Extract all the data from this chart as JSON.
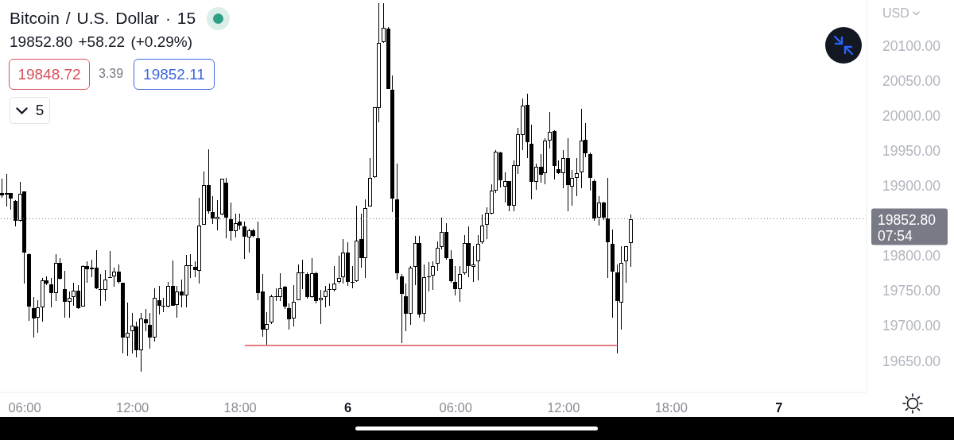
{
  "chart_data": {
    "type": "candlestick",
    "title": "Bitcoin / U.S. Dollar · 15",
    "subtitle": "19852.80 +58.22 (+0.29%)",
    "ylabel": "USD",
    "annotations": [
      "07:54",
      "19848.72",
      "3.39",
      "19852.11",
      "5"
    ],
    "categories": [
      null,
      null,
      null,
      null,
      null,
      "06:00",
      null,
      null,
      null,
      null,
      null,
      null,
      null,
      null,
      null,
      null,
      null,
      null,
      null,
      null,
      null,
      null,
      null,
      null,
      null,
      null,
      null,
      null,
      null,
      "12:00",
      null,
      null,
      null,
      null,
      null,
      null,
      null,
      null,
      null,
      null,
      null,
      null,
      null,
      null,
      null,
      null,
      null,
      null,
      null,
      null,
      null,
      null,
      null,
      "18:00",
      null,
      null,
      null,
      null,
      null,
      null,
      null,
      null,
      null,
      null,
      null,
      null,
      null,
      null,
      null,
      null,
      null,
      null,
      null,
      null,
      null,
      null,
      null,
      "6",
      null,
      null,
      null,
      null,
      null,
      null,
      null,
      null,
      null,
      null,
      null,
      null,
      null,
      null,
      null,
      null,
      null,
      null,
      null,
      null,
      null,
      null,
      null,
      "06:00",
      null,
      null,
      null,
      null,
      null,
      null,
      null,
      null,
      null,
      null,
      null,
      null,
      null,
      null,
      null,
      null,
      null,
      null,
      null,
      null,
      null,
      null,
      null,
      "12:00",
      null,
      null,
      null,
      null,
      null,
      null,
      null,
      null,
      null,
      null,
      null,
      null,
      null,
      null,
      null,
      null,
      null,
      null,
      null,
      null,
      null,
      null,
      null,
      "18:00",
      null,
      null,
      null,
      null,
      null,
      null,
      null,
      null,
      null,
      null,
      null,
      null,
      null,
      null,
      null,
      null,
      null,
      null,
      null,
      null,
      null,
      null,
      null,
      "7",
      null,
      null,
      null,
      null,
      null,
      null,
      null,
      null,
      null,
      null,
      null,
      null,
      null,
      null,
      null,
      null,
      null,
      null,
      null
    ],
    "ohlc": [
      [
        19890,
        19910,
        19883,
        19886
      ],
      [
        19890,
        19917,
        19870,
        19887
      ],
      [
        19890,
        19890,
        19866,
        19881
      ],
      [
        19879,
        19879,
        19842,
        19849
      ],
      [
        19849,
        19905,
        19849,
        19889
      ],
      [
        19892,
        19892,
        19760,
        19804
      ],
      [
        19803,
        19803,
        19707,
        19727
      ],
      [
        19726,
        19741,
        19683,
        19710
      ],
      [
        19711,
        19737,
        19690,
        19727
      ],
      [
        19726,
        19768,
        19706,
        19765
      ],
      [
        19765,
        19770,
        19758,
        19760
      ],
      [
        19760,
        19768,
        19726,
        19746
      ],
      [
        19746,
        19802,
        19735,
        19790
      ],
      [
        19790,
        19797,
        19766,
        19767
      ],
      [
        19753,
        19778,
        19711,
        19734
      ],
      [
        19734,
        19749,
        19711,
        19740
      ],
      [
        19740,
        19761,
        19729,
        19751
      ],
      [
        19751,
        19758,
        19724,
        19725
      ],
      [
        19727,
        19786,
        19727,
        19786
      ],
      [
        19786,
        19792,
        19761,
        19780
      ],
      [
        19783,
        19794,
        19769,
        19780
      ],
      [
        19783,
        19808,
        19752,
        19753
      ],
      [
        19753,
        19774,
        19729,
        19751
      ],
      [
        19751,
        19780,
        19735,
        19767
      ],
      [
        19768,
        19807,
        19768,
        19770
      ],
      [
        19770,
        19783,
        19756,
        19778
      ],
      [
        19778,
        19788,
        19760,
        19762
      ],
      [
        19762,
        19762,
        19660,
        19683
      ],
      [
        19683,
        19733,
        19657,
        19691
      ],
      [
        19692,
        19718,
        19660,
        19701
      ],
      [
        19700,
        19706,
        19655,
        19665
      ],
      [
        19665,
        19718,
        19634,
        19711
      ],
      [
        19710,
        19724,
        19692,
        19703
      ],
      [
        19702,
        19718,
        19667,
        19683
      ],
      [
        19683,
        19754,
        19678,
        19741
      ],
      [
        19737,
        19757,
        19716,
        19728
      ],
      [
        19729,
        19740,
        19720,
        19727
      ],
      [
        19727,
        19763,
        19726,
        19757
      ],
      [
        19757,
        19793,
        19728,
        19728
      ],
      [
        19729,
        19757,
        19712,
        19750
      ],
      [
        19749,
        19766,
        19726,
        19743
      ],
      [
        19743,
        19801,
        19726,
        19787
      ],
      [
        19787,
        19802,
        19768,
        19785
      ],
      [
        19785,
        19792,
        19769,
        19779
      ],
      [
        19778,
        19883,
        19760,
        19844
      ],
      [
        19844,
        19920,
        19844,
        19901
      ],
      [
        19901,
        19952,
        19860,
        19863
      ],
      [
        19863,
        19885,
        19845,
        19853
      ],
      [
        19852,
        19879,
        19836,
        19856
      ],
      [
        19858,
        19910,
        19858,
        19910
      ],
      [
        19905,
        19911,
        19825,
        19854
      ],
      [
        19853,
        19876,
        19822,
        19834
      ],
      [
        19835,
        19860,
        19826,
        19847
      ],
      [
        19849,
        19860,
        19837,
        19843
      ],
      [
        19842,
        19849,
        19795,
        19827
      ],
      [
        19826,
        19839,
        19805,
        19837
      ],
      [
        19837,
        19839,
        19826,
        19828
      ],
      [
        19826,
        19849,
        19737,
        19746
      ],
      [
        19749,
        19774,
        19684,
        19694
      ],
      [
        19694,
        19720,
        19673,
        19703
      ],
      [
        19704,
        19745,
        19703,
        19743
      ],
      [
        19743,
        19754,
        19735,
        19741
      ],
      [
        19741,
        19775,
        19735,
        19754
      ],
      [
        19756,
        19757,
        19724,
        19727
      ],
      [
        19726,
        19732,
        19694,
        19709
      ],
      [
        19710,
        19758,
        19699,
        19735
      ],
      [
        19736,
        19788,
        19736,
        19777
      ],
      [
        19777,
        19794,
        19752,
        19774
      ],
      [
        19774,
        19776,
        19739,
        19741
      ],
      [
        19740,
        19797,
        19740,
        19776
      ],
      [
        19776,
        19777,
        19732,
        19735
      ],
      [
        19736,
        19751,
        19702,
        19741
      ],
      [
        19741,
        19757,
        19726,
        19751
      ],
      [
        19751,
        19760,
        19728,
        19752
      ],
      [
        19751,
        19785,
        19749,
        19761
      ],
      [
        19762,
        19800,
        19760,
        19769
      ],
      [
        19769,
        19824,
        19760,
        19805
      ],
      [
        19805,
        19819,
        19757,
        19762
      ],
      [
        19761,
        19785,
        19754,
        19763
      ],
      [
        19763,
        19871,
        19763,
        19822
      ],
      [
        19824,
        19860,
        19783,
        19796
      ],
      [
        19796,
        19880,
        19768,
        19869
      ],
      [
        19870,
        19939,
        19870,
        19912
      ],
      [
        19912,
        20012,
        19911,
        20012
      ],
      [
        20010,
        20160,
        19990,
        20104
      ],
      [
        20104,
        20160,
        20104,
        20126
      ],
      [
        20125,
        20127,
        20038,
        20038
      ],
      [
        20038,
        20057,
        19862,
        19881
      ],
      [
        19881,
        19932,
        19766,
        19775
      ],
      [
        19771,
        19774,
        19675,
        19745
      ],
      [
        19743,
        19760,
        19692,
        19717
      ],
      [
        19717,
        19785,
        19701,
        19784
      ],
      [
        19784,
        19828,
        19758,
        19819
      ],
      [
        19819,
        19828,
        19711,
        19716
      ],
      [
        19717,
        19788,
        19706,
        19770
      ],
      [
        19770,
        19791,
        19749,
        19771
      ],
      [
        19771,
        19792,
        19751,
        19786
      ],
      [
        19788,
        19820,
        19779,
        19812
      ],
      [
        19812,
        19854,
        19809,
        19835
      ],
      [
        19835,
        19847,
        19794,
        19796
      ],
      [
        19796,
        19808,
        19762,
        19763
      ],
      [
        19763,
        19785,
        19743,
        19752
      ],
      [
        19752,
        19785,
        19734,
        19774
      ],
      [
        19774,
        19830,
        19773,
        19819
      ],
      [
        19819,
        19842,
        19769,
        19785
      ],
      [
        19784,
        19814,
        19763,
        19788
      ],
      [
        19791,
        19830,
        19765,
        19817
      ],
      [
        19819,
        19859,
        19817,
        19844
      ],
      [
        19844,
        19869,
        19824,
        19862
      ],
      [
        19860,
        19902,
        19859,
        19893
      ],
      [
        19892,
        19951,
        19890,
        19949
      ],
      [
        19948,
        19949,
        19898,
        19907
      ],
      [
        19898,
        19919,
        19876,
        19907
      ],
      [
        19907,
        19907,
        19864,
        19871
      ],
      [
        19871,
        19936,
        19864,
        19930
      ],
      [
        19928,
        19983,
        19917,
        19974
      ],
      [
        19972,
        20024,
        19951,
        20015
      ],
      [
        20016,
        20031,
        19939,
        19961
      ],
      [
        19960,
        19987,
        19881,
        19905
      ],
      [
        19905,
        19932,
        19894,
        19928
      ],
      [
        19928,
        19945,
        19904,
        19915
      ],
      [
        19917,
        19968,
        19902,
        19965
      ],
      [
        19964,
        20005,
        19953,
        19977
      ],
      [
        19978,
        19979,
        19909,
        19928
      ],
      [
        19924,
        19936,
        19917,
        19917
      ],
      [
        19917,
        19951,
        19896,
        19940
      ],
      [
        19940,
        19968,
        19864,
        19900
      ],
      [
        19898,
        19922,
        19871,
        19912
      ],
      [
        19911,
        19939,
        19885,
        19919
      ],
      [
        19919,
        20010,
        19896,
        19965
      ],
      [
        19966,
        19989,
        19941,
        19946
      ],
      [
        19946,
        19947,
        19893,
        19911
      ],
      [
        19907,
        19909,
        19850,
        19853
      ],
      [
        19854,
        19885,
        19843,
        19876
      ],
      [
        19876,
        19877,
        19851,
        19854
      ],
      [
        19854,
        19911,
        19768,
        19819
      ],
      [
        19818,
        19837,
        19711,
        19777
      ],
      [
        19777,
        19788,
        19661,
        19735
      ],
      [
        19733,
        19814,
        19695,
        19790
      ],
      [
        19792,
        19814,
        19762,
        19814
      ],
      [
        19818,
        19859,
        19784,
        19852.8
      ],
      null,
      null,
      null,
      null,
      null,
      null,
      null,
      null,
      null,
      null,
      null,
      null,
      null,
      null,
      null,
      null,
      null,
      null,
      null,
      null,
      null,
      null,
      null,
      null,
      null,
      null,
      null,
      null,
      null,
      null,
      null,
      null,
      null,
      null,
      null,
      null,
      null,
      null,
      null,
      null,
      null,
      null,
      null,
      null,
      null,
      null,
      null,
      null,
      null,
      null,
      null,
      null
    ],
    "color": "#000000",
    "series": [
      {
        "type": "line",
        "color": "#e0555a",
        "values": [
          null,
          null,
          null,
          null,
          null,
          null,
          null,
          null,
          null,
          null,
          null,
          null,
          null,
          null,
          null,
          null,
          null,
          null,
          null,
          null,
          null,
          null,
          null,
          null,
          null,
          null,
          null,
          null,
          null,
          null,
          null,
          null,
          null,
          null,
          null,
          null,
          null,
          null,
          null,
          null,
          null,
          null,
          null,
          null,
          null,
          null,
          null,
          null,
          null,
          null,
          null,
          null,
          null,
          null,
          19672,
          19672,
          19672,
          19672,
          19672,
          19672,
          19672,
          19672,
          19672,
          19672,
          19672,
          19672,
          19672,
          19672,
          19672,
          19672,
          19672,
          19672,
          19672,
          19672,
          19672,
          19672,
          19672,
          19672,
          19672,
          19672,
          19672,
          19672,
          19672,
          19672,
          19672,
          19672,
          19672,
          19672,
          19672,
          19672,
          19672,
          19672,
          19672,
          19672,
          19672,
          19672,
          19672,
          19672,
          19672,
          19672,
          19672,
          19672,
          19672,
          19672,
          19672,
          19672,
          19672,
          19672,
          19672,
          19672,
          19672,
          19672,
          19672,
          19672,
          19672,
          19672,
          19672,
          19672,
          19672,
          19672,
          19672,
          19672,
          19672,
          19672,
          19672,
          19672,
          19672,
          19672,
          19672,
          19672,
          19672,
          19672,
          19672,
          19672,
          19672,
          19672,
          19672,
          19672,
          null,
          null,
          null,
          null,
          null,
          null,
          null,
          null,
          null,
          null,
          null,
          null,
          null,
          null,
          null,
          null,
          null,
          null,
          null,
          null,
          null,
          null,
          null,
          null,
          null,
          null,
          null,
          null,
          null,
          null,
          null,
          null,
          null,
          null,
          null,
          null,
          null,
          null,
          null,
          null,
          null,
          null,
          null,
          null,
          null,
          null,
          null,
          null,
          null,
          null,
          null,
          null,
          null,
          null,
          null
        ]
      }
    ],
    "ylim": [
      19605,
      20165
    ],
    "yticks": [
      {
        "value": 19650,
        "label": "19650.00"
      },
      {
        "value": 19700,
        "label": "19700.00"
      },
      {
        "value": 19750,
        "label": "19750.00"
      },
      {
        "value": 19800,
        "label": "19800.00"
      },
      {
        "value": 19900,
        "label": "19900.00"
      },
      {
        "value": 19950,
        "label": "19950.00"
      },
      {
        "value": 20000,
        "label": "20000.00"
      },
      {
        "value": 20050,
        "label": "20050.00"
      },
      {
        "value": 20100,
        "label": "20100.00"
      }
    ],
    "ref_lines": [
      {
        "axis": "y",
        "value": 19852.8,
        "label": "19852.80",
        "color": "#787b86",
        "line_style": "dotted"
      }
    ]
  }
}
